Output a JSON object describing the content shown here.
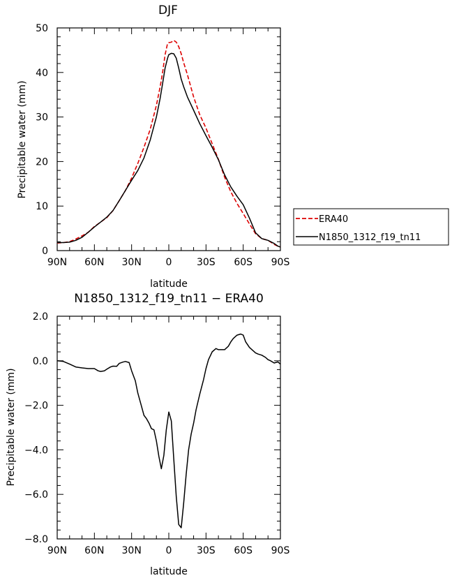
{
  "chart_data": [
    {
      "type": "line",
      "title": "DJF",
      "xlabel": "latitude",
      "ylabel": "Precipitable water (mm)",
      "xlim": [
        -90,
        90
      ],
      "ylim": [
        0,
        50
      ],
      "x_ticks": [
        -90,
        -60,
        -30,
        0,
        30,
        60,
        90
      ],
      "x_tick_labels": [
        "90N",
        "60N",
        "30N",
        "0",
        "30S",
        "60S",
        "90S"
      ],
      "y_ticks": [
        0,
        10,
        20,
        30,
        40,
        50
      ],
      "y_tick_labels": [
        "0",
        "10",
        "20",
        "30",
        "40",
        "50"
      ],
      "grid": false,
      "legend_position": "right",
      "series": [
        {
          "name": "ERA40",
          "color": "#dd0000",
          "style": "dashed",
          "x": [
            -90,
            -85,
            -80,
            -75,
            -70,
            -65,
            -60,
            -55,
            -50,
            -45,
            -40,
            -35,
            -30,
            -25,
            -20,
            -15,
            -10,
            -7,
            -5,
            -3,
            -1,
            0,
            2,
            4,
            6,
            8,
            10,
            12,
            15,
            20,
            25,
            30,
            35,
            40,
            45,
            50,
            55,
            60,
            65,
            70,
            75,
            80,
            85,
            88,
            90
          ],
          "y": [
            1.7,
            1.8,
            2.0,
            2.6,
            3.3,
            4.1,
            5.4,
            6.4,
            7.4,
            9.0,
            11.2,
            13.5,
            16.3,
            19.6,
            23.2,
            27.2,
            32.6,
            36.8,
            40.0,
            44.0,
            46.5,
            46.7,
            46.8,
            47.2,
            46.8,
            45.8,
            44.2,
            42.2,
            39.5,
            34.5,
            30.5,
            27.5,
            24.0,
            20.5,
            16.5,
            13.2,
            10.6,
            8.3,
            6.0,
            3.8,
            2.7,
            2.3,
            1.4,
            1.0,
            0.8
          ]
        },
        {
          "name": "N1850_1312_f19_tn11",
          "color": "#000000",
          "style": "solid",
          "x": [
            -90,
            -85,
            -80,
            -75,
            -70,
            -65,
            -60,
            -55,
            -50,
            -45,
            -40,
            -35,
            -30,
            -25,
            -20,
            -15,
            -10,
            -7,
            -5,
            -3,
            -1,
            0,
            2,
            4,
            6,
            8,
            10,
            12,
            15,
            20,
            25,
            30,
            35,
            40,
            45,
            50,
            55,
            60,
            65,
            70,
            75,
            80,
            85,
            88,
            90
          ],
          "y": [
            1.8,
            1.8,
            1.9,
            2.3,
            3.0,
            4.1,
            5.3,
            6.4,
            7.5,
            9.0,
            11.2,
            13.5,
            15.8,
            18.0,
            20.8,
            24.8,
            30.0,
            34.2,
            37.5,
            41.0,
            43.2,
            44.0,
            44.3,
            44.2,
            43.2,
            41.0,
            38.5,
            36.8,
            34.5,
            31.5,
            28.5,
            25.8,
            23.2,
            20.4,
            17.0,
            14.3,
            12.2,
            10.3,
            7.3,
            4.0,
            2.7,
            2.3,
            1.6,
            1.0,
            0.8
          ]
        }
      ]
    },
    {
      "type": "line",
      "title": "N1850_1312_f19_tn11 − ERA40",
      "xlabel": "latitude",
      "ylabel": "Precipitable water (mm)",
      "xlim": [
        -90,
        90
      ],
      "ylim": [
        -8,
        2
      ],
      "x_ticks": [
        -90,
        -60,
        -30,
        0,
        30,
        60,
        90
      ],
      "x_tick_labels": [
        "90N",
        "60N",
        "30N",
        "0",
        "30S",
        "60S",
        "90S"
      ],
      "y_ticks": [
        -8,
        -6,
        -4,
        -2,
        0,
        2
      ],
      "y_tick_labels": [
        "−8.0",
        "−6.0",
        "−4.0",
        "−2.0",
        "0.0",
        "2.0"
      ],
      "grid": false,
      "series": [
        {
          "color": "#000000",
          "style": "solid",
          "x": [
            -90,
            -85,
            -80,
            -75,
            -70,
            -65,
            -60,
            -57,
            -55,
            -52,
            -50,
            -47,
            -45,
            -42,
            -40,
            -37,
            -35,
            -32,
            -30,
            -27,
            -25,
            -22,
            -20,
            -18,
            -16,
            -14,
            -12,
            -10,
            -8,
            -6,
            -4,
            -2,
            0,
            2,
            4,
            6,
            8,
            10,
            12,
            14,
            16,
            18,
            20,
            22,
            25,
            28,
            30,
            32,
            35,
            38,
            40,
            42,
            45,
            48,
            50,
            52,
            55,
            58,
            60,
            62,
            65,
            68,
            70,
            72,
            75,
            78,
            80,
            82,
            85,
            88,
            90
          ],
          "y": [
            0.0,
            -0.03,
            -0.15,
            -0.28,
            -0.32,
            -0.35,
            -0.35,
            -0.45,
            -0.48,
            -0.45,
            -0.38,
            -0.28,
            -0.24,
            -0.25,
            -0.12,
            -0.06,
            -0.03,
            -0.08,
            -0.45,
            -0.9,
            -1.45,
            -2.05,
            -2.45,
            -2.6,
            -2.8,
            -3.05,
            -3.1,
            -3.6,
            -4.3,
            -4.85,
            -4.25,
            -3.1,
            -2.3,
            -2.7,
            -4.4,
            -6.1,
            -7.35,
            -7.5,
            -6.4,
            -5.1,
            -4.0,
            -3.3,
            -2.8,
            -2.2,
            -1.5,
            -0.85,
            -0.35,
            0.05,
            0.4,
            0.55,
            0.5,
            0.5,
            0.5,
            0.65,
            0.85,
            1.0,
            1.15,
            1.2,
            1.15,
            0.85,
            0.6,
            0.45,
            0.35,
            0.3,
            0.25,
            0.15,
            0.05,
            0.0,
            -0.1,
            -0.05,
            -0.15
          ]
        }
      ]
    }
  ],
  "legend": {
    "items": [
      {
        "label": "ERA40",
        "color": "#dd0000",
        "style": "dashed"
      },
      {
        "label": "N1850_1312_f19_tn11",
        "color": "#000000",
        "style": "solid"
      }
    ]
  }
}
